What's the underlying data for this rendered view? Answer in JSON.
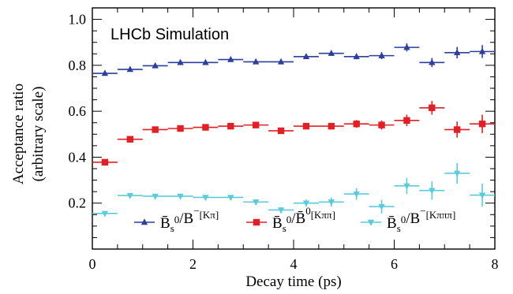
{
  "chart_data": {
    "type": "scatter",
    "annotation": "LHCb Simulation",
    "xlabel": "Decay time (ps)",
    "ylabel": "Acceptance ratio",
    "ylabel_sub": "(arbitrary scale)",
    "xlim": [
      0,
      8
    ],
    "ylim": [
      0,
      1.05
    ],
    "xticks": [
      0,
      2,
      4,
      6,
      8
    ],
    "yticks": [
      0.2,
      0.4,
      0.6,
      0.8,
      1.0
    ],
    "ytick_labels": [
      "0.2",
      "0.4",
      "0.6",
      "0.8",
      "1.0"
    ],
    "grid": false,
    "legend_position": "bottom",
    "series": [
      {
        "name": "B̄s0/B−[Kπ]",
        "color": "#2b3f9e",
        "marker": "triangle-up",
        "points": [
          {
            "x": 0.25,
            "y": 0.765,
            "xerr": 0.25,
            "yerr": 0.008
          },
          {
            "x": 0.75,
            "y": 0.782,
            "xerr": 0.25,
            "yerr": 0.006
          },
          {
            "x": 1.25,
            "y": 0.798,
            "xerr": 0.25,
            "yerr": 0.006
          },
          {
            "x": 1.75,
            "y": 0.812,
            "xerr": 0.25,
            "yerr": 0.006
          },
          {
            "x": 2.25,
            "y": 0.812,
            "xerr": 0.25,
            "yerr": 0.006
          },
          {
            "x": 2.75,
            "y": 0.825,
            "xerr": 0.25,
            "yerr": 0.006
          },
          {
            "x": 3.25,
            "y": 0.815,
            "xerr": 0.25,
            "yerr": 0.007
          },
          {
            "x": 3.75,
            "y": 0.815,
            "xerr": 0.25,
            "yerr": 0.008
          },
          {
            "x": 4.25,
            "y": 0.838,
            "xerr": 0.25,
            "yerr": 0.009
          },
          {
            "x": 4.75,
            "y": 0.852,
            "xerr": 0.25,
            "yerr": 0.011
          },
          {
            "x": 5.25,
            "y": 0.838,
            "xerr": 0.25,
            "yerr": 0.012
          },
          {
            "x": 5.75,
            "y": 0.842,
            "xerr": 0.25,
            "yerr": 0.015
          },
          {
            "x": 6.25,
            "y": 0.878,
            "xerr": 0.25,
            "yerr": 0.018
          },
          {
            "x": 6.75,
            "y": 0.812,
            "xerr": 0.25,
            "yerr": 0.02
          },
          {
            "x": 7.25,
            "y": 0.855,
            "xerr": 0.25,
            "yerr": 0.025
          },
          {
            "x": 7.75,
            "y": 0.86,
            "xerr": 0.25,
            "yerr": 0.028
          }
        ]
      },
      {
        "name": "B̄s0/B̄0[Kππ]",
        "color": "#e31e24",
        "marker": "square",
        "points": [
          {
            "x": 0.25,
            "y": 0.378,
            "xerr": 0.25,
            "yerr": 0.008
          },
          {
            "x": 0.75,
            "y": 0.478,
            "xerr": 0.25,
            "yerr": 0.008
          },
          {
            "x": 1.25,
            "y": 0.52,
            "xerr": 0.25,
            "yerr": 0.008
          },
          {
            "x": 1.75,
            "y": 0.525,
            "xerr": 0.25,
            "yerr": 0.008
          },
          {
            "x": 2.25,
            "y": 0.53,
            "xerr": 0.25,
            "yerr": 0.008
          },
          {
            "x": 2.75,
            "y": 0.535,
            "xerr": 0.25,
            "yerr": 0.009
          },
          {
            "x": 3.25,
            "y": 0.54,
            "xerr": 0.25,
            "yerr": 0.01
          },
          {
            "x": 3.75,
            "y": 0.515,
            "xerr": 0.25,
            "yerr": 0.011
          },
          {
            "x": 4.25,
            "y": 0.535,
            "xerr": 0.25,
            "yerr": 0.012
          },
          {
            "x": 4.75,
            "y": 0.535,
            "xerr": 0.25,
            "yerr": 0.014
          },
          {
            "x": 5.25,
            "y": 0.545,
            "xerr": 0.25,
            "yerr": 0.017
          },
          {
            "x": 5.75,
            "y": 0.54,
            "xerr": 0.25,
            "yerr": 0.02
          },
          {
            "x": 6.25,
            "y": 0.56,
            "xerr": 0.25,
            "yerr": 0.025
          },
          {
            "x": 6.75,
            "y": 0.615,
            "xerr": 0.25,
            "yerr": 0.03
          },
          {
            "x": 7.25,
            "y": 0.52,
            "xerr": 0.25,
            "yerr": 0.035
          },
          {
            "x": 7.75,
            "y": 0.545,
            "xerr": 0.25,
            "yerr": 0.04
          }
        ]
      },
      {
        "name": "B̄s0/B−[Kπππ]",
        "color": "#5ccbd9",
        "marker": "triangle-down",
        "points": [
          {
            "x": 0.25,
            "y": 0.155,
            "xerr": 0.25,
            "yerr": 0.006
          },
          {
            "x": 0.75,
            "y": 0.233,
            "xerr": 0.25,
            "yerr": 0.006
          },
          {
            "x": 1.25,
            "y": 0.23,
            "xerr": 0.25,
            "yerr": 0.006
          },
          {
            "x": 1.75,
            "y": 0.23,
            "xerr": 0.25,
            "yerr": 0.007
          },
          {
            "x": 2.25,
            "y": 0.225,
            "xerr": 0.25,
            "yerr": 0.008
          },
          {
            "x": 2.75,
            "y": 0.225,
            "xerr": 0.25,
            "yerr": 0.009
          },
          {
            "x": 3.25,
            "y": 0.205,
            "xerr": 0.25,
            "yerr": 0.011
          },
          {
            "x": 3.75,
            "y": 0.17,
            "xerr": 0.25,
            "yerr": 0.013
          },
          {
            "x": 4.25,
            "y": 0.2,
            "xerr": 0.25,
            "yerr": 0.016
          },
          {
            "x": 4.75,
            "y": 0.205,
            "xerr": 0.25,
            "yerr": 0.02
          },
          {
            "x": 5.25,
            "y": 0.24,
            "xerr": 0.25,
            "yerr": 0.025
          },
          {
            "x": 5.75,
            "y": 0.185,
            "xerr": 0.25,
            "yerr": 0.03
          },
          {
            "x": 6.25,
            "y": 0.275,
            "xerr": 0.25,
            "yerr": 0.035
          },
          {
            "x": 6.75,
            "y": 0.255,
            "xerr": 0.25,
            "yerr": 0.04
          },
          {
            "x": 7.25,
            "y": 0.33,
            "xerr": 0.25,
            "yerr": 0.045
          },
          {
            "x": 7.75,
            "y": 0.235,
            "xerr": 0.25,
            "yerr": 0.05
          }
        ]
      }
    ],
    "legend": [
      {
        "base": "B̄",
        "sub1": "s",
        "sup": "0",
        "slash": "/",
        "den": "B",
        "densup": "−",
        "subscript": "[Kπ]",
        "dencolor": "#2b3f9e"
      },
      {
        "base": "B̄",
        "sub1": "s",
        "sup": "0",
        "slash": "/",
        "den": "B̄",
        "densup": "0",
        "subscript": "[Kππ]",
        "dencolor": "#e31e24"
      },
      {
        "base": "B̄",
        "sub1": "s",
        "sup": "0",
        "slash": "/",
        "den": "B",
        "densup": "−",
        "subscript": "[Kπππ]",
        "dencolor": "#5ccbd9"
      }
    ]
  }
}
